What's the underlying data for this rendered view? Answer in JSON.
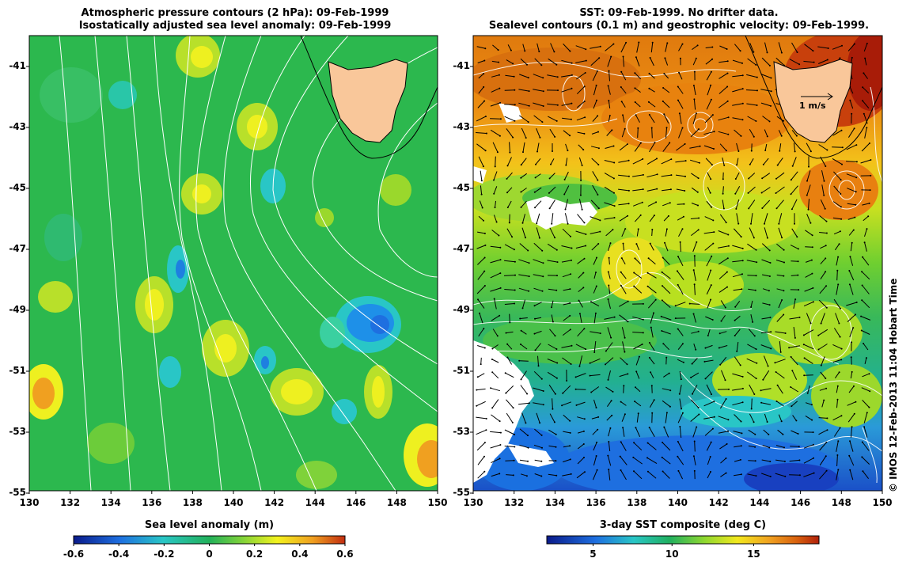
{
  "left_panel": {
    "title_line1": "Atmospheric pressure contours (2 hPa): 09-Feb-1999",
    "title_line2": "Isostatically adjusted sea level anomaly: 09-Feb-1999",
    "colorbar_label": "Sea level anomaly (m)",
    "colorbar_ticks": [
      "-0.6",
      "-0.4",
      "-0.2",
      "0",
      "0.2",
      "0.4",
      "0.6"
    ]
  },
  "right_panel": {
    "title_line1": "SST: 09-Feb-1999. No drifter data.",
    "title_line2": "Sealevel contours (0.1 m) and geostrophic velocity: 09-Feb-1999.",
    "colorbar_label": "3-day SST composite (deg C)",
    "colorbar_ticks": [
      "5",
      "10",
      "15"
    ],
    "scale_arrow_label": "1 m/s"
  },
  "x_ticks": [
    "130",
    "132",
    "134",
    "136",
    "138",
    "140",
    "142",
    "144",
    "146",
    "148",
    "150"
  ],
  "y_ticks": [
    "-41",
    "-43",
    "-45",
    "-47",
    "-49",
    "-51",
    "-53",
    "-55"
  ],
  "credit": "© IMOS 12-Feb-2013 11:04 Hobart Time",
  "colors": {
    "land": "#f9c79a",
    "slа_ramp": [
      "#0a1a8a",
      "#1e6fe0",
      "#29c6c6",
      "#22b15a",
      "#7fd23a",
      "#f2f21e",
      "#f0a020",
      "#c22d10"
    ],
    "sst_ramp": [
      "#0a1a8a",
      "#1e6fe0",
      "#29c6c6",
      "#20b060",
      "#8fd830",
      "#f2e81e",
      "#f0a020",
      "#d8600e",
      "#b0200a"
    ]
  }
}
